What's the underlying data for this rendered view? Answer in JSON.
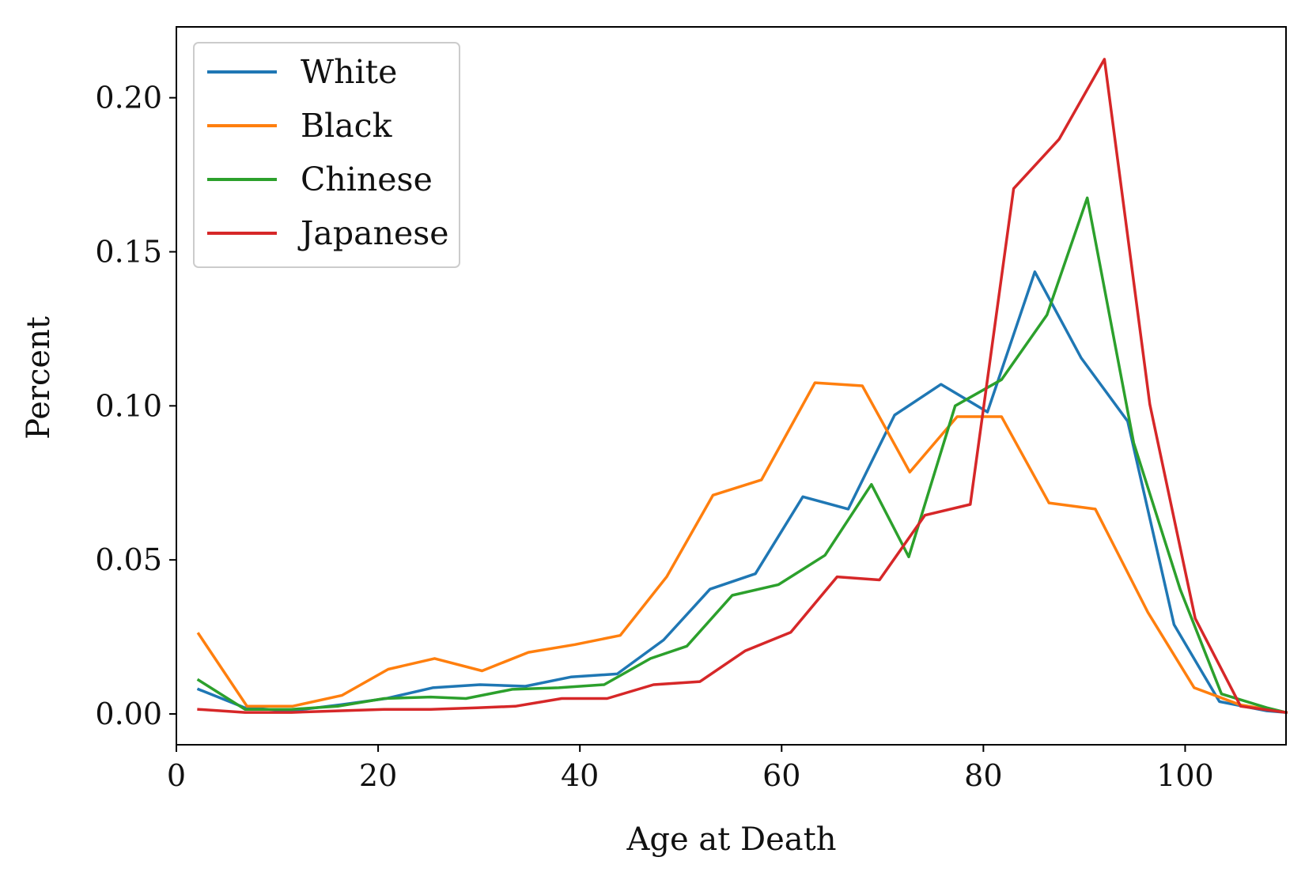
{
  "chart_data": {
    "type": "line",
    "title": "",
    "xlabel": "Age at Death",
    "ylabel": "Percent",
    "xlim": [
      0,
      110
    ],
    "ylim": [
      -0.01,
      0.223
    ],
    "xticks": [
      0,
      20,
      40,
      60,
      80,
      100
    ],
    "xtick_labels": [
      "0",
      "20",
      "40",
      "60",
      "80",
      "100"
    ],
    "yticks": [
      0.0,
      0.05,
      0.1,
      0.15,
      0.2
    ],
    "ytick_labels": [
      "0.00",
      "0.05",
      "0.10",
      "0.15",
      "0.20"
    ],
    "grid": false,
    "legend_position": "top-left",
    "series": [
      {
        "name": "White",
        "color": "#1f77b4",
        "x": [
          2.2,
          6.8,
          11.4,
          16.3,
          20.8,
          25.4,
          30.1,
          34.6,
          39.1,
          43.7,
          48.3,
          52.9,
          57.4,
          62.1,
          66.6,
          71.2,
          75.8,
          80.4,
          85.1,
          89.7,
          94.3,
          98.9,
          103.4,
          108.1,
          110
        ],
        "y": [
          0.008,
          0.002,
          0.001,
          0.003,
          0.005,
          0.0085,
          0.0095,
          0.009,
          0.012,
          0.013,
          0.024,
          0.0405,
          0.0455,
          0.0705,
          0.0665,
          0.097,
          0.107,
          0.098,
          0.1435,
          0.1155,
          0.095,
          0.029,
          0.004,
          0.001,
          0.0005
        ]
      },
      {
        "name": "Black",
        "color": "#ff7f0e",
        "x": [
          2.2,
          7.0,
          11.5,
          16.4,
          21.0,
          25.6,
          30.3,
          34.9,
          39.5,
          44.0,
          48.6,
          53.2,
          58.0,
          63.3,
          68.0,
          72.7,
          77.4,
          81.8,
          86.5,
          91.1,
          96.3,
          100.9,
          105.4,
          110
        ],
        "y": [
          0.026,
          0.0025,
          0.0025,
          0.006,
          0.0145,
          0.018,
          0.014,
          0.02,
          0.0225,
          0.0255,
          0.0445,
          0.071,
          0.076,
          0.1075,
          0.1065,
          0.0785,
          0.0965,
          0.0965,
          0.0685,
          0.0665,
          0.033,
          0.0085,
          0.003,
          0.0005
        ]
      },
      {
        "name": "Chinese",
        "color": "#2ca02c",
        "x": [
          2.2,
          6.8,
          11.4,
          16.0,
          20.6,
          25.2,
          28.7,
          33.3,
          37.9,
          42.4,
          47.0,
          50.6,
          55.1,
          59.7,
          64.3,
          68.9,
          72.6,
          77.2,
          81.8,
          86.3,
          90.3,
          94.9,
          99.5,
          103.6,
          108.1,
          110
        ],
        "y": [
          0.011,
          0.0015,
          0.0015,
          0.0025,
          0.005,
          0.0055,
          0.005,
          0.008,
          0.0085,
          0.0095,
          0.018,
          0.022,
          0.0385,
          0.042,
          0.0515,
          0.0745,
          0.051,
          0.1,
          0.1085,
          0.1295,
          0.1675,
          0.088,
          0.0405,
          0.0065,
          0.002,
          0.0005
        ]
      },
      {
        "name": "Japanese",
        "color": "#d62728",
        "x": [
          2.2,
          6.8,
          11.4,
          16.0,
          20.6,
          25.2,
          29.8,
          33.6,
          38.2,
          42.7,
          47.3,
          51.9,
          56.4,
          60.9,
          65.5,
          69.7,
          74.2,
          78.7,
          83.0,
          87.5,
          92.0,
          96.5,
          101.0,
          105.5,
          110
        ],
        "y": [
          0.0015,
          0.0005,
          0.0005,
          0.001,
          0.0015,
          0.0015,
          0.002,
          0.0025,
          0.005,
          0.005,
          0.0095,
          0.0105,
          0.0205,
          0.0265,
          0.0445,
          0.0435,
          0.0645,
          0.068,
          0.1705,
          0.1865,
          0.2125,
          0.1005,
          0.031,
          0.0025,
          0.0005
        ]
      }
    ]
  }
}
